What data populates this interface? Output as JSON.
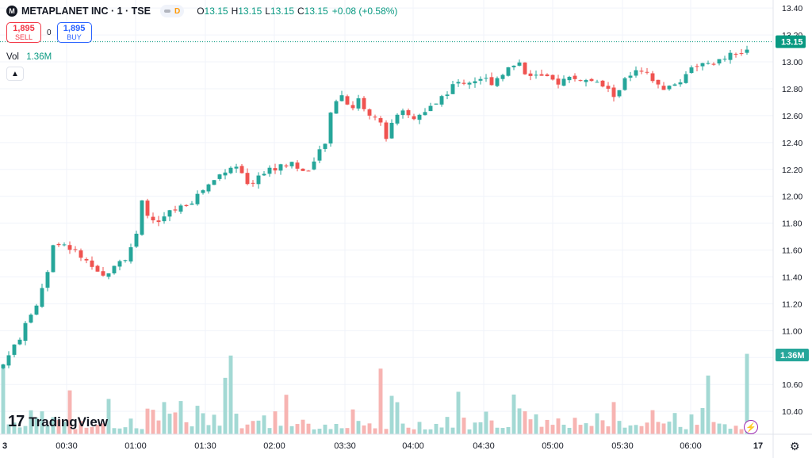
{
  "symbol": {
    "logo_letter": "M",
    "title": "METAPLANET INC · 1 · TSE",
    "market_status_letter": "D"
  },
  "ohlc": {
    "o_label": "O",
    "o": "13.15",
    "h_label": "H",
    "h": "13.15",
    "l_label": "L",
    "l": "13.15",
    "c_label": "C",
    "c": "13.15",
    "change": "+0.08 (+0.58%)"
  },
  "trade": {
    "sell_price": "1,895",
    "sell_label": "SELL",
    "spread": "0",
    "buy_price": "1,895",
    "buy_label": "BUY"
  },
  "volume_legend": {
    "label": "Vol",
    "value": "1.36M"
  },
  "collapse_icon": "chevron-up-icon",
  "branding": {
    "mark": "17",
    "word": "TradingView"
  },
  "icons": {
    "bolt": "lightning-icon",
    "settings": "gear-icon"
  },
  "colors": {
    "up": "#26a69a",
    "down": "#ef5350",
    "last_price": "#089981",
    "vol_up": "#a3d9d4",
    "vol_down": "#f7b4b2"
  },
  "chart_data": {
    "type": "candlestick",
    "price_axis": {
      "ticks": [
        10.4,
        10.6,
        10.8,
        11.0,
        11.2,
        11.4,
        11.6,
        11.8,
        12.0,
        12.2,
        12.4,
        12.6,
        12.8,
        13.0,
        13.2,
        13.4
      ],
      "range": [
        10.23,
        13.46
      ]
    },
    "time_axis": {
      "ticks": [
        "3",
        "00:30",
        "01:00",
        "01:30",
        "02:00",
        "03:30",
        "04:00",
        "04:30",
        "05:00",
        "05:30",
        "06:00",
        "17"
      ]
    },
    "last_price": {
      "value": 13.15,
      "label": "13.15"
    },
    "volume_label": "1.36M",
    "price_path": [
      [
        0,
        10.75
      ],
      [
        3,
        10.95
      ],
      [
        6,
        11.2
      ],
      [
        8,
        11.45
      ],
      [
        9,
        11.65
      ],
      [
        10,
        11.63
      ],
      [
        12,
        11.62
      ],
      [
        14,
        11.55
      ],
      [
        16,
        11.45
      ],
      [
        18,
        11.4
      ],
      [
        20,
        11.5
      ],
      [
        22,
        11.55
      ],
      [
        24,
        11.7
      ],
      [
        25,
        11.95
      ],
      [
        26,
        11.85
      ],
      [
        28,
        11.8
      ],
      [
        30,
        11.88
      ],
      [
        32,
        11.92
      ],
      [
        34,
        11.97
      ],
      [
        36,
        12.05
      ],
      [
        38,
        12.12
      ],
      [
        40,
        12.2
      ],
      [
        42,
        12.22
      ],
      [
        44,
        12.08
      ],
      [
        46,
        12.15
      ],
      [
        48,
        12.2
      ],
      [
        50,
        12.22
      ],
      [
        52,
        12.25
      ],
      [
        54,
        12.18
      ],
      [
        56,
        12.25
      ],
      [
        58,
        12.4
      ],
      [
        59,
        12.6
      ],
      [
        60,
        12.72
      ],
      [
        61,
        12.75
      ],
      [
        62,
        12.7
      ],
      [
        63,
        12.66
      ],
      [
        64,
        12.72
      ],
      [
        66,
        12.6
      ],
      [
        68,
        12.56
      ],
      [
        69,
        12.45
      ],
      [
        70,
        12.55
      ],
      [
        72,
        12.62
      ],
      [
        74,
        12.58
      ],
      [
        76,
        12.62
      ],
      [
        78,
        12.7
      ],
      [
        80,
        12.78
      ],
      [
        82,
        12.85
      ],
      [
        84,
        12.85
      ],
      [
        86,
        12.88
      ],
      [
        88,
        12.85
      ],
      [
        90,
        12.92
      ],
      [
        92,
        12.98
      ],
      [
        93,
        13.0
      ],
      [
        94,
        12.92
      ],
      [
        96,
        12.9
      ],
      [
        98,
        12.87
      ],
      [
        100,
        12.85
      ],
      [
        102,
        12.88
      ],
      [
        104,
        12.87
      ],
      [
        106,
        12.85
      ],
      [
        108,
        12.82
      ],
      [
        110,
        12.75
      ],
      [
        112,
        12.86
      ],
      [
        114,
        12.92
      ],
      [
        116,
        12.9
      ],
      [
        118,
        12.82
      ],
      [
        120,
        12.8
      ],
      [
        122,
        12.86
      ],
      [
        124,
        12.97
      ],
      [
        126,
        12.98
      ],
      [
        128,
        12.96
      ],
      [
        130,
        13.04
      ],
      [
        132,
        13.05
      ],
      [
        134,
        13.07
      ]
    ]
  }
}
